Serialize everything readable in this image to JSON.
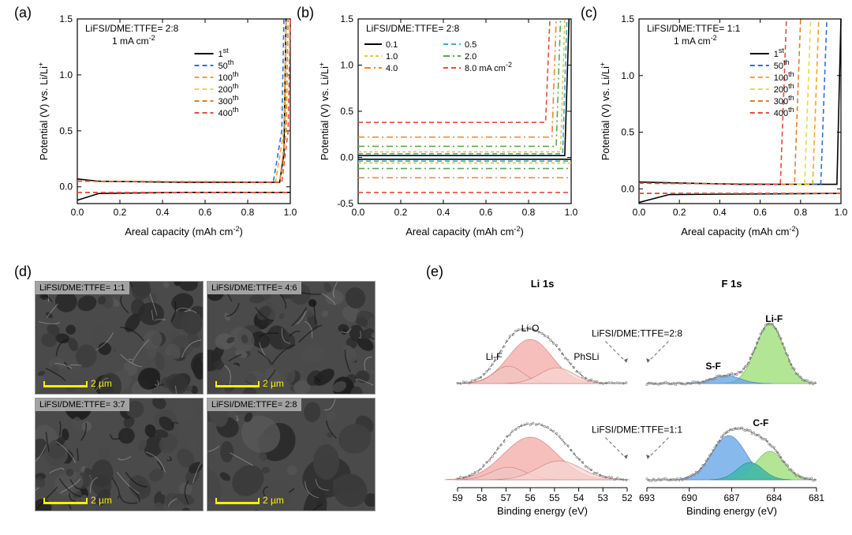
{
  "panels": {
    "a": "(a)",
    "b": "(b)",
    "c": "(c)",
    "d": "(d)",
    "e": "(e)"
  },
  "chartA": {
    "type": "line",
    "annot1": "LiFSI/DME:TTFE= 2:8",
    "annot2": "1 mA cm",
    "annot2_sup": "-2",
    "xlabel": "Areal capacity (mAh cm",
    "xlabel_sup": "-2",
    "xlabel_close": ")",
    "ylabel": "Potential (V) vs. Li/Li",
    "ylabel_sup": "+",
    "xlim": [
      0.0,
      1.0
    ],
    "ylim": [
      -0.15,
      1.5
    ],
    "xticks": [
      0.0,
      0.2,
      0.4,
      0.6,
      0.8,
      1.0
    ],
    "yticks": [
      0.0,
      0.5,
      1.0,
      1.5
    ],
    "series_colors": [
      "#000000",
      "#2e6fdb",
      "#f5a623",
      "#e8d94a",
      "#e67e22",
      "#e94b3c"
    ],
    "series_dash": [
      "",
      "6,4",
      "6,4",
      "6,4",
      "6,4",
      "6,4"
    ],
    "legend": [
      "1",
      "50",
      "100",
      "200",
      "300",
      "400"
    ],
    "legend_suffix": [
      "st",
      "th",
      "th",
      "th",
      "th",
      "th"
    ],
    "curves": [
      [
        [
          0.0,
          0.07
        ],
        [
          0.1,
          0.05
        ],
        [
          0.5,
          0.04
        ],
        [
          0.95,
          0.04
        ],
        [
          0.97,
          0.3
        ],
        [
          0.98,
          1.5
        ]
      ],
      [
        [
          0.0,
          0.05
        ],
        [
          0.92,
          0.04
        ],
        [
          0.96,
          0.5
        ],
        [
          0.97,
          1.5
        ]
      ],
      [
        [
          0.0,
          0.05
        ],
        [
          0.93,
          0.04
        ],
        [
          0.97,
          0.5
        ],
        [
          0.98,
          1.5
        ]
      ],
      [
        [
          0.0,
          0.05
        ],
        [
          0.95,
          0.04
        ],
        [
          0.98,
          0.5
        ],
        [
          0.99,
          1.5
        ]
      ],
      [
        [
          0.0,
          0.05
        ],
        [
          0.95,
          0.04
        ],
        [
          0.98,
          0.5
        ],
        [
          0.99,
          1.5
        ]
      ],
      [
        [
          0.0,
          0.05
        ],
        [
          0.96,
          0.04
        ],
        [
          0.99,
          0.5
        ],
        [
          1.0,
          1.5
        ]
      ]
    ],
    "curves2": [
      [
        [
          0.0,
          -0.12
        ],
        [
          0.1,
          -0.06
        ],
        [
          0.5,
          -0.05
        ],
        [
          1.0,
          -0.05
        ]
      ],
      [
        [
          0.0,
          -0.05
        ],
        [
          1.0,
          -0.05
        ]
      ],
      [
        [
          0.0,
          -0.05
        ],
        [
          1.0,
          -0.05
        ]
      ],
      [
        [
          0.0,
          -0.05
        ],
        [
          1.0,
          -0.05
        ]
      ],
      [
        [
          0.0,
          -0.05
        ],
        [
          1.0,
          -0.05
        ]
      ],
      [
        [
          0.0,
          -0.05
        ],
        [
          1.0,
          -0.05
        ]
      ]
    ]
  },
  "chartB": {
    "type": "line",
    "annot1": "LiFSI/DME:TTFE= 2:8",
    "xlabel": "Areal capacity (mAh cm",
    "xlabel_sup": "-2",
    "xlabel_close": ")",
    "ylabel": "Potential (V) vs. Li/Li",
    "ylabel_sup": "+",
    "xlim": [
      0.0,
      1.0
    ],
    "ylim": [
      -0.5,
      1.5
    ],
    "xticks": [
      0.0,
      0.2,
      0.4,
      0.6,
      0.8,
      1.0
    ],
    "yticks": [
      -0.5,
      0.0,
      0.5,
      1.0,
      1.5
    ],
    "series_colors": [
      "#000000",
      "#33b1c9",
      "#dfc84a",
      "#5aa850",
      "#f0852b",
      "#e94b3c"
    ],
    "series_dash": [
      "",
      "6,4",
      "4,3",
      "8,4,2,4",
      "8,4,2,4",
      "6,4"
    ],
    "legend": [
      "0.1",
      "0.5",
      "1.0",
      "2.0",
      "4.0",
      "8.0 mA cm"
    ],
    "legend_sup": [
      "",
      "",
      "",
      "",
      "",
      "-2"
    ],
    "curves": [
      [
        [
          0.0,
          0.02
        ],
        [
          0.97,
          0.02
        ],
        [
          0.99,
          1.5
        ]
      ],
      [
        [
          0.0,
          0.04
        ],
        [
          0.96,
          0.04
        ],
        [
          0.98,
          1.5
        ]
      ],
      [
        [
          0.0,
          0.06
        ],
        [
          0.95,
          0.06
        ],
        [
          0.97,
          1.5
        ]
      ],
      [
        [
          0.0,
          0.12
        ],
        [
          0.93,
          0.12
        ],
        [
          0.95,
          1.5
        ]
      ],
      [
        [
          0.0,
          0.22
        ],
        [
          0.91,
          0.22
        ],
        [
          0.93,
          1.5
        ]
      ],
      [
        [
          0.0,
          0.38
        ],
        [
          0.88,
          0.38
        ],
        [
          0.9,
          1.5
        ]
      ]
    ],
    "curves2": [
      [
        [
          0.0,
          -0.02
        ],
        [
          1.0,
          -0.02
        ]
      ],
      [
        [
          0.0,
          -0.04
        ],
        [
          1.0,
          -0.04
        ]
      ],
      [
        [
          0.0,
          -0.06
        ],
        [
          1.0,
          -0.06
        ]
      ],
      [
        [
          0.0,
          -0.12
        ],
        [
          1.0,
          -0.12
        ]
      ],
      [
        [
          0.0,
          -0.22
        ],
        [
          1.0,
          -0.22
        ]
      ],
      [
        [
          0.0,
          -0.38
        ],
        [
          1.0,
          -0.38
        ]
      ]
    ]
  },
  "chartC": {
    "type": "line",
    "annot1": "LiFSI/DME:TTFE= 1:1",
    "annot2": "1 mA cm",
    "annot2_sup": "-2",
    "xlabel": "Areal capacity (mAh cm",
    "xlabel_sup": "-2",
    "xlabel_close": ")",
    "ylabel": "Potential (V) vs. Li/Li",
    "ylabel_sup": "+",
    "xlim": [
      0.0,
      1.0
    ],
    "ylim": [
      -0.13,
      1.5
    ],
    "xticks": [
      0.0,
      0.2,
      0.4,
      0.6,
      0.8,
      1.0
    ],
    "yticks": [
      0.0,
      0.5,
      1.0,
      1.5
    ],
    "series_colors": [
      "#000000",
      "#2e6fdb",
      "#f5a623",
      "#e8d94a",
      "#e67e22",
      "#e94b3c"
    ],
    "series_dash": [
      "",
      "6,4",
      "6,4",
      "6,4",
      "6,4",
      "6,4"
    ],
    "legend": [
      "1",
      "50",
      "100",
      "200",
      "300",
      "400"
    ],
    "legend_suffix": [
      "st",
      "th",
      "th",
      "th",
      "th",
      "th"
    ],
    "curves": [
      [
        [
          0.0,
          0.06
        ],
        [
          0.5,
          0.04
        ],
        [
          0.98,
          0.04
        ],
        [
          1.0,
          1.5
        ]
      ],
      [
        [
          0.0,
          0.05
        ],
        [
          0.9,
          0.04
        ],
        [
          0.93,
          1.5
        ]
      ],
      [
        [
          0.0,
          0.05
        ],
        [
          0.86,
          0.04
        ],
        [
          0.89,
          1.5
        ]
      ],
      [
        [
          0.0,
          0.05
        ],
        [
          0.82,
          0.04
        ],
        [
          0.85,
          1.5
        ]
      ],
      [
        [
          0.0,
          0.05
        ],
        [
          0.77,
          0.04
        ],
        [
          0.8,
          1.5
        ]
      ],
      [
        [
          0.0,
          0.05
        ],
        [
          0.7,
          0.04
        ],
        [
          0.73,
          1.5
        ]
      ]
    ],
    "curves2": [
      [
        [
          0.0,
          -0.12
        ],
        [
          0.15,
          -0.05
        ],
        [
          1.0,
          -0.04
        ]
      ],
      [
        [
          0.0,
          -0.04
        ],
        [
          1.0,
          -0.04
        ]
      ],
      [
        [
          0.0,
          -0.04
        ],
        [
          1.0,
          -0.04
        ]
      ],
      [
        [
          0.0,
          -0.04
        ],
        [
          1.0,
          -0.04
        ]
      ],
      [
        [
          0.0,
          -0.04
        ],
        [
          1.0,
          -0.04
        ]
      ],
      [
        [
          0.0,
          -0.04
        ],
        [
          1.0,
          -0.04
        ]
      ]
    ]
  },
  "sem": {
    "tiles": [
      {
        "label": "LiFSI/DME:TTFE= 1:1",
        "scale": "2 µm"
      },
      {
        "label": "LiFSI/DME:TTFE= 4:6",
        "scale": "2 µm"
      },
      {
        "label": "LiFSI/DME:TTFE= 3:7",
        "scale": "2 µm"
      },
      {
        "label": "LiFSI/DME:TTFE= 2:8",
        "scale": "2 µm"
      }
    ]
  },
  "xps": {
    "title_li": "Li 1s",
    "title_f": "F 1s",
    "xlabel": "Binding energy (eV)",
    "li_xticks": [
      59,
      58,
      57,
      56,
      55,
      54,
      53,
      52
    ],
    "f_xticks": [
      693,
      690,
      687,
      684,
      681
    ],
    "labels": {
      "lio": "Li-O",
      "lif": "Li-F",
      "phsli": "PhSLi",
      "lifg": "Li-F",
      "sf": "S-F",
      "cf": "C-F"
    },
    "cond28": "LiFSI/DME:TTFE=2:8",
    "cond11": "LiFSI/DME:TTFE=1:1",
    "colors": {
      "lio": "#f3a9a6",
      "lio_stroke": "#d47a76",
      "lif_li": "#efc6c4",
      "phsli": "#f5d5d3",
      "lifg": "#9fe07a",
      "lifg_stroke": "#6eb84c",
      "sf": "#6aa8e8",
      "sf_stroke": "#3d7cc4",
      "cf": "#39b5a9",
      "cf_stroke": "#1f8a80",
      "data": "#888",
      "fit": "#555"
    }
  }
}
